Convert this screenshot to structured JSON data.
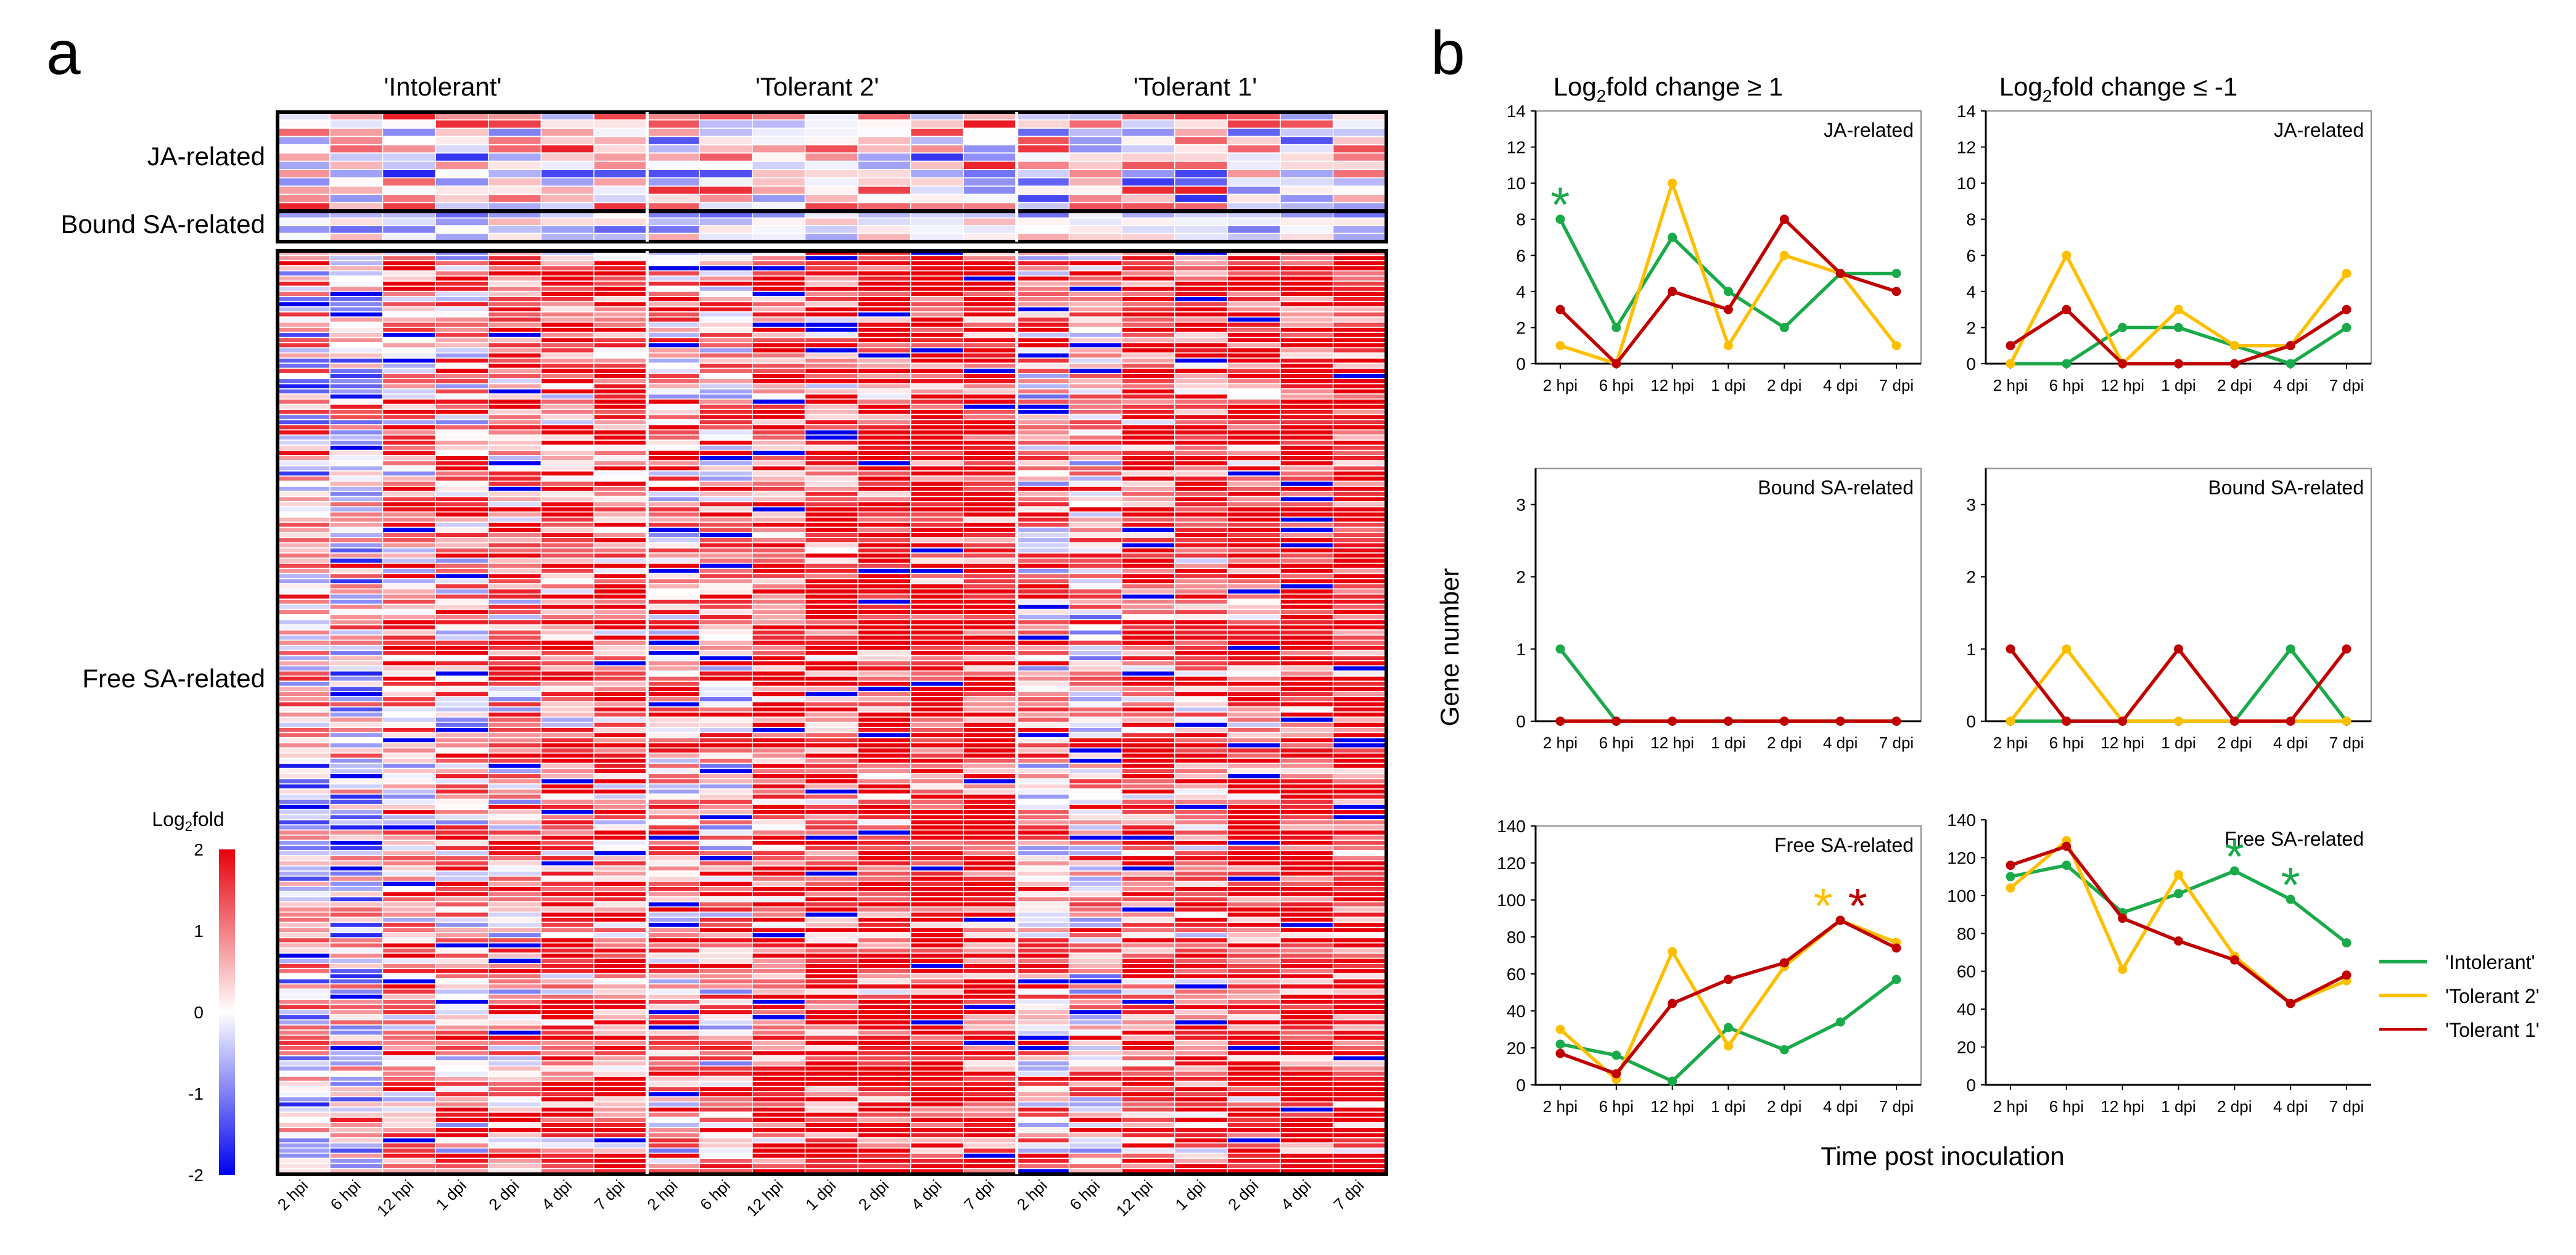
{
  "panel_a": {
    "label": "a",
    "cultivars": [
      "'Intolerant'",
      "'Tolerant 2'",
      "'Tolerant 1'"
    ],
    "blocks": [
      {
        "name": "JA-related",
        "rows": 12
      },
      {
        "name": "Bound SA-related",
        "rows": 4
      },
      {
        "name": "Free SA-related",
        "rows": 180
      }
    ],
    "timepoints": [
      "2 hpi",
      "6 hpi",
      "12 hpi",
      "1 dpi",
      "2 dpi",
      "4 dpi",
      "7 dpi"
    ],
    "colorbar": {
      "title": "Log",
      "title_sub": "2",
      "title_rest": "fold",
      "ticks": [
        "2",
        "1",
        "0",
        "-1",
        "-2"
      ],
      "colors": {
        "high": "#e8000b",
        "mid": "#ffffff",
        "low": "#0000ee"
      }
    }
  },
  "panel_b": {
    "label": "b",
    "col_titles": [
      {
        "pre": "Log",
        "sub": "2",
        "post": "fold change ≥ 1"
      },
      {
        "pre": "Log",
        "sub": "2",
        "post": "fold change ≤ -1"
      }
    ],
    "ylabel": "Gene number",
    "xlabel": "Time post inoculation",
    "legend": [
      "'Intolerant'",
      "'Tolerant 2'",
      "'Tolerant 1'"
    ],
    "colors": {
      "Intolerant": "#1aaa4a",
      "Tolerant 2": "#ffbf00",
      "Tolerant 1": "#c00000"
    }
  },
  "chart_data": [
    {
      "type": "heatmap",
      "title": "",
      "note": "Heatmap of log2 fold change per gene (rows) and cultivar × timepoint (columns); individual cell values are not labeled in the figure.",
      "columns": [
        "2 hpi",
        "6 hpi",
        "12 hpi",
        "1 dpi",
        "2 dpi",
        "4 dpi",
        "7 dpi"
      ],
      "groups": [
        "'Intolerant'",
        "'Tolerant 2'",
        "'Tolerant 1'"
      ],
      "row_blocks": [
        "JA-related",
        "Bound SA-related",
        "Free SA-related"
      ],
      "value_range": [
        -2,
        2
      ]
    },
    {
      "type": "line",
      "id": "ja_up",
      "title": "JA-related",
      "categories": [
        "2 hpi",
        "6 hpi",
        "12 hpi",
        "1 dpi",
        "2 dpi",
        "4 dpi",
        "7 dpi"
      ],
      "tick_labels": [
        "2 hpi",
        "6 hpi",
        "12 hpi",
        "1 dpi",
        "2 dpi",
        "4 dpi",
        "7 dpi"
      ],
      "ylim": [
        0,
        14
      ],
      "yticks": [
        0,
        2,
        4,
        6,
        8,
        10,
        12,
        14
      ],
      "series": [
        {
          "name": "'Intolerant'",
          "values": [
            8,
            2,
            7,
            4,
            2,
            5,
            5
          ]
        },
        {
          "name": "'Tolerant 2'",
          "values": [
            1,
            0,
            10,
            1,
            6,
            5,
            1
          ]
        },
        {
          "name": "'Tolerant 1'",
          "values": [
            3,
            0,
            4,
            3,
            8,
            5,
            4
          ]
        }
      ],
      "annotations": [
        {
          "text": "*",
          "series": "'Intolerant'",
          "index": 0
        }
      ]
    },
    {
      "type": "line",
      "id": "ja_down",
      "title": "JA-related",
      "categories": [
        "2 hpi",
        "6 hpi",
        "12 hpi",
        "1 dpi",
        "2 dpi",
        "4 dpi",
        "7 dpi"
      ],
      "tick_labels": [
        "2 hpi",
        "6 hpi",
        "12 hpi",
        "1 dpi",
        "2 dpi",
        "4 dpi",
        "7 dpi"
      ],
      "ylim": [
        0,
        14
      ],
      "yticks": [
        0,
        2,
        4,
        6,
        8,
        10,
        12,
        14
      ],
      "series": [
        {
          "name": "'Intolerant'",
          "values": [
            0,
            0,
            2,
            2,
            1,
            0,
            2
          ]
        },
        {
          "name": "'Tolerant 2'",
          "values": [
            0,
            6,
            0,
            3,
            1,
            1,
            5
          ]
        },
        {
          "name": "'Tolerant 1'",
          "values": [
            1,
            3,
            0,
            0,
            0,
            1,
            3
          ]
        }
      ],
      "annotations": []
    },
    {
      "type": "line",
      "id": "bsa_up",
      "title": "Bound SA-related",
      "categories": [
        "2 hpi",
        "6 hpi",
        "12 hpi",
        "1 dpi",
        "2 dpi",
        "4 dpi",
        "7 dpi"
      ],
      "tick_labels": [
        "2 hpi",
        "6 hpi",
        "12 hpi",
        "1 dpi",
        "2 dpi",
        "4 dpi",
        "7 dpi"
      ],
      "ylim": [
        0,
        3.5
      ],
      "yticks": [
        0,
        1,
        2,
        3
      ],
      "series": [
        {
          "name": "'Intolerant'",
          "values": [
            1,
            0,
            0,
            0,
            0,
            0,
            0
          ]
        },
        {
          "name": "'Tolerant 2'",
          "values": [
            0,
            0,
            0,
            0,
            0,
            0,
            0
          ]
        },
        {
          "name": "'Tolerant 1'",
          "values": [
            0,
            0,
            0,
            0,
            0,
            0,
            0
          ]
        }
      ],
      "annotations": []
    },
    {
      "type": "line",
      "id": "bsa_down",
      "title": "Bound SA-related",
      "categories": [
        "2 hpi",
        "6 hpi",
        "12 hpi",
        "1 dpi",
        "2 dpi",
        "4 dpi",
        "7 dpi"
      ],
      "tick_labels": [
        "2 hpi",
        "6 hpi",
        "12 hpi",
        "1 dpi",
        "2 dpi",
        "4 dpi",
        "7 dpi"
      ],
      "ylim": [
        0,
        3.5
      ],
      "yticks": [
        0,
        1,
        2,
        3
      ],
      "series": [
        {
          "name": "'Intolerant'",
          "values": [
            0,
            0,
            0,
            0,
            0,
            1,
            0
          ]
        },
        {
          "name": "'Tolerant 2'",
          "values": [
            0,
            1,
            0,
            0,
            0,
            0,
            0
          ]
        },
        {
          "name": "'Tolerant 1'",
          "values": [
            1,
            0,
            0,
            1,
            0,
            0,
            1
          ]
        }
      ],
      "annotations": []
    },
    {
      "type": "line",
      "id": "fsa_up",
      "title": "Free SA-related",
      "categories": [
        "2 hpi",
        "6 hpi",
        "12 hpi",
        "1 dpi",
        "2 dpi",
        "4 dpi",
        "7 dpi"
      ],
      "tick_labels": [
        "2 hpi",
        "6 hpi",
        "12 hpi",
        "1 dpi",
        "2 dpi",
        "4 dpi",
        "7 dpi"
      ],
      "ylim": [
        0,
        140
      ],
      "yticks": [
        0,
        20,
        40,
        60,
        80,
        100,
        120,
        140
      ],
      "series": [
        {
          "name": "'Intolerant'",
          "values": [
            22,
            16,
            2,
            31,
            19,
            34,
            57
          ]
        },
        {
          "name": "'Tolerant 2'",
          "values": [
            30,
            3,
            72,
            21,
            64,
            89,
            77
          ]
        },
        {
          "name": "'Tolerant 1'",
          "values": [
            17,
            6,
            44,
            57,
            66,
            89,
            74
          ]
        }
      ],
      "annotations": [
        {
          "text": "*",
          "series": "'Tolerant 2'",
          "index": 5
        },
        {
          "text": "*",
          "series": "'Tolerant 1'",
          "index": 5
        }
      ]
    },
    {
      "type": "line",
      "id": "fsa_down",
      "title": "Free SA-related",
      "categories": [
        "2 hpi",
        "6 hpi",
        "12 hpi",
        "1 dpi",
        "2 dpi",
        "4 dpi",
        "7 dpi"
      ],
      "tick_labels": [
        "2 hpi",
        "6 hpi",
        "12 hpi",
        "1 dpi",
        "2 dpi",
        "4 dpi",
        "7 dpi"
      ],
      "ylim": [
        0,
        140
      ],
      "yticks": [
        0,
        20,
        40,
        60,
        80,
        100,
        120,
        140
      ],
      "series": [
        {
          "name": "'Intolerant'",
          "values": [
            110,
            116,
            91,
            101,
            113,
            98,
            75
          ]
        },
        {
          "name": "'Tolerant 2'",
          "values": [
            104,
            129,
            61,
            111,
            68,
            43,
            55
          ]
        },
        {
          "name": "'Tolerant 1'",
          "values": [
            116,
            126,
            88,
            76,
            66,
            43,
            58
          ]
        }
      ],
      "annotations": [
        {
          "text": "*",
          "series": "'Intolerant'",
          "index": 4
        },
        {
          "text": "*",
          "series": "'Intolerant'",
          "index": 5
        }
      ]
    }
  ]
}
